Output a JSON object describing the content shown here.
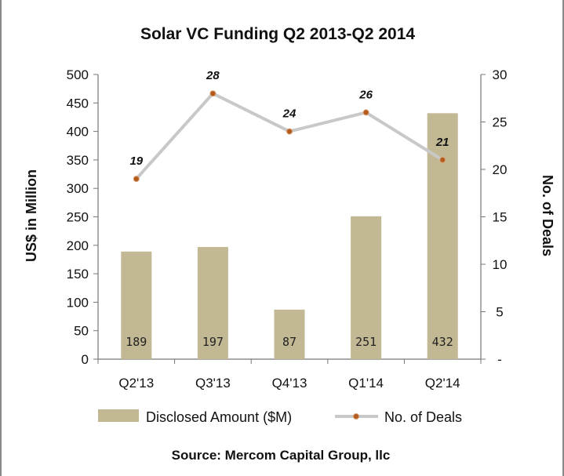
{
  "chart_data": {
    "type": "bar",
    "title": "Solar VC Funding Q2 2013-Q2 2014",
    "categories": [
      "Q2'13",
      "Q3'13",
      "Q4'13",
      "Q1'14",
      "Q2'14"
    ],
    "series": [
      {
        "name": "Disclosed Amount ($M)",
        "type": "bar",
        "axis": "left",
        "values": [
          189,
          197,
          87,
          251,
          432
        ],
        "color": "#c2b894"
      },
      {
        "name": "No. of Deals",
        "type": "line",
        "axis": "right",
        "values": [
          19,
          28,
          24,
          26,
          21
        ],
        "color": "#c8c8c8",
        "marker_color": "#b35a1f"
      }
    ],
    "ylabel": "US$ in Million",
    "ylim": [
      0,
      500
    ],
    "yticks": [
      "0",
      "50",
      "100",
      "150",
      "200",
      "250",
      "300",
      "350",
      "400",
      "450",
      "500"
    ],
    "y2label": "No. of Deals",
    "y2lim": [
      0,
      30
    ],
    "y2ticks": [
      "-",
      "5",
      "10",
      "15",
      "20",
      "25",
      "30"
    ],
    "legend_position": "bottom"
  },
  "source": "Source: Mercom Capital Group, llc"
}
